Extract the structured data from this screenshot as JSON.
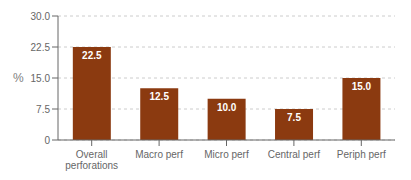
{
  "chart_data": {
    "type": "bar",
    "categories": [
      "Overall\nperforations",
      "Macro perf",
      "Micro perf",
      "Central perf",
      "Periph perf"
    ],
    "values": [
      22.5,
      12.5,
      10.0,
      7.5,
      15.0
    ],
    "value_labels": [
      "22.5",
      "12.5",
      "10.0",
      "7.5",
      "15.0"
    ],
    "data_labels": true,
    "color": "#8B3A10",
    "ylabel": "%",
    "ylim": [
      0,
      30.0
    ],
    "yticks": [
      0,
      7.5,
      {
        "value": 15.0,
        "label": "15.0"
      },
      22.5,
      {
        "value": 30.0,
        "label": "30.0"
      }
    ],
    "grid": true
  }
}
